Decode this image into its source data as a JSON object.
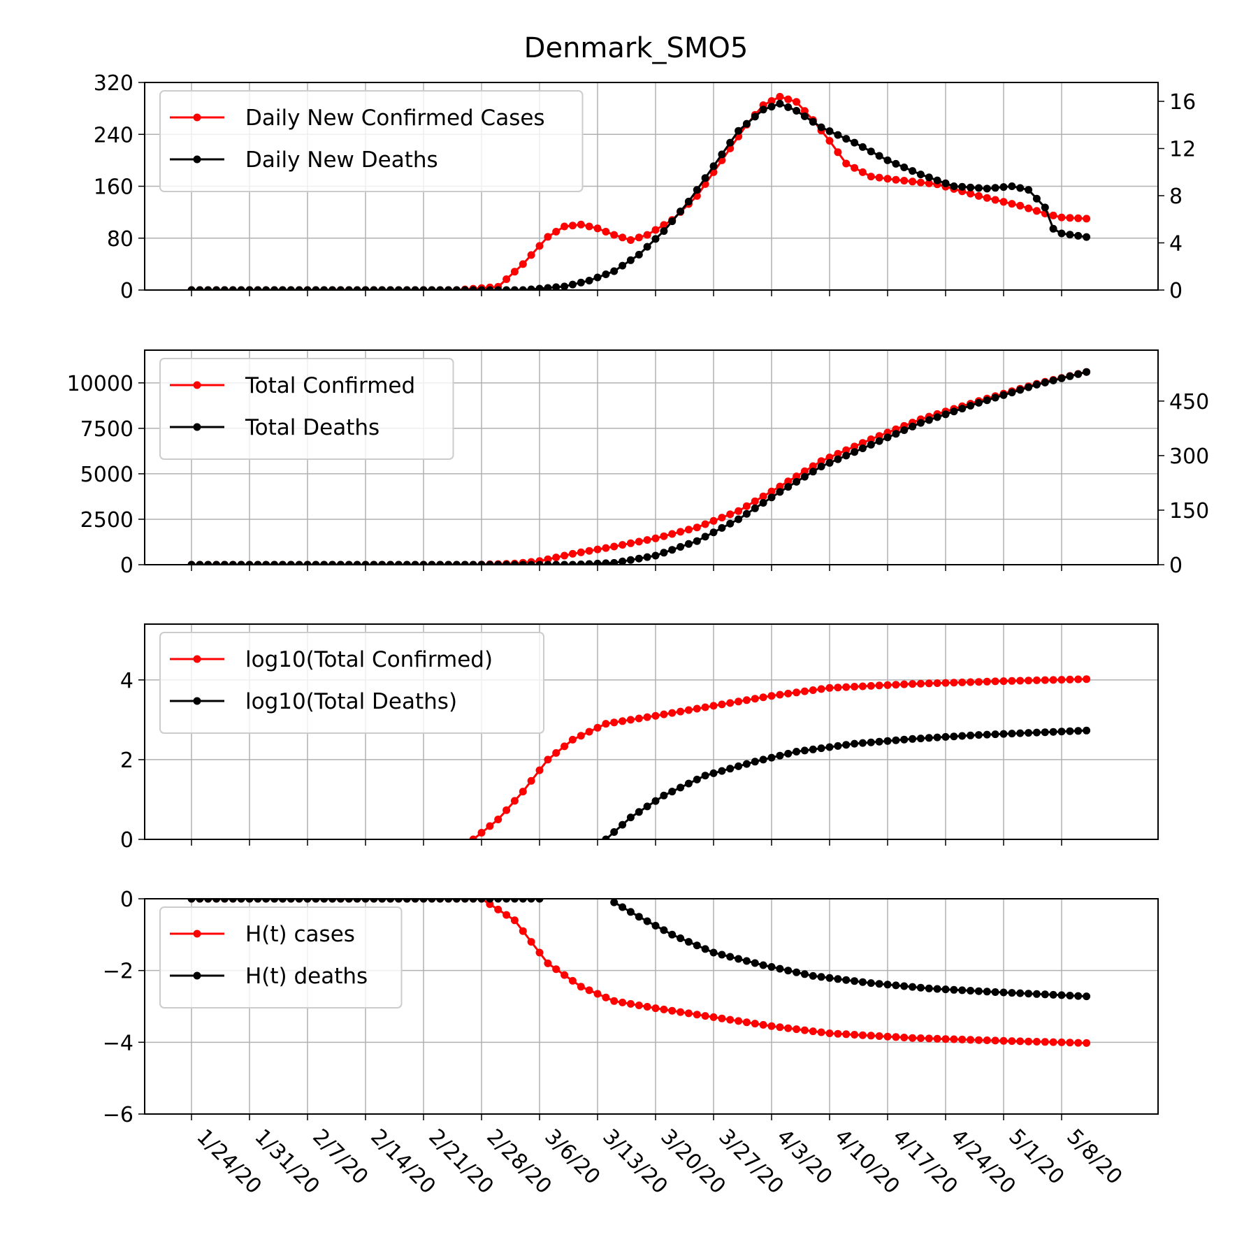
{
  "title": "Denmark_SMO5",
  "colors": {
    "cases": "#ff0000",
    "deaths": "#000000",
    "grid": "#b0b0b0"
  },
  "chart_data": [
    {
      "type": "line",
      "x_start": "1/24/20",
      "x_end": "5/11/20",
      "x_ticks": [
        "1/24/20",
        "1/31/20",
        "2/7/20",
        "2/14/20",
        "2/21/20",
        "2/28/20",
        "3/6/20",
        "3/13/20",
        "3/20/20",
        "3/27/20",
        "4/3/20",
        "4/10/20",
        "4/17/20",
        "4/24/20",
        "5/1/20",
        "5/8/20"
      ],
      "y_left": {
        "ylim": [
          0,
          320
        ],
        "ticks": [
          "0",
          "80",
          "160",
          "240",
          "320"
        ]
      },
      "y_right": {
        "ylim": [
          0,
          17.6
        ],
        "ticks": [
          "0",
          "4",
          "8",
          "12",
          "16"
        ]
      },
      "grid": true,
      "legend": "top-left",
      "series": [
        {
          "name": "Daily New Confirmed Cases",
          "axis": "left",
          "color": "#ff0000",
          "keypoints": [
            [
              "1/24/20",
              0
            ],
            [
              "2/25/20",
              0
            ],
            [
              "3/1/20",
              5
            ],
            [
              "3/4/20",
              40
            ],
            [
              "3/7/20",
              82
            ],
            [
              "3/9/20",
              98
            ],
            [
              "3/11/20",
              101
            ],
            [
              "3/13/20",
              95
            ],
            [
              "3/15/20",
              85
            ],
            [
              "3/17/20",
              77
            ],
            [
              "3/19/20",
              85
            ],
            [
              "3/22/20",
              108
            ],
            [
              "3/25/20",
              145
            ],
            [
              "3/28/20",
              200
            ],
            [
              "3/31/20",
              255
            ],
            [
              "4/2/20",
              285
            ],
            [
              "4/4/20",
              298
            ],
            [
              "4/6/20",
              290
            ],
            [
              "4/8/20",
              262
            ],
            [
              "4/10/20",
              230
            ],
            [
              "4/12/20",
              195
            ],
            [
              "4/15/20",
              175
            ],
            [
              "4/18/20",
              170
            ],
            [
              "4/23/20",
              163
            ],
            [
              "4/28/20",
              145
            ],
            [
              "5/3/20",
              130
            ],
            [
              "5/6/20",
              118
            ],
            [
              "5/8/20",
              112
            ],
            [
              "5/11/20",
              110
            ]
          ]
        },
        {
          "name": "Daily New Deaths",
          "axis": "right",
          "color": "#000000",
          "keypoints": [
            [
              "1/24/20",
              0
            ],
            [
              "3/4/20",
              0
            ],
            [
              "3/9/20",
              0.3
            ],
            [
              "3/12/20",
              0.8
            ],
            [
              "3/15/20",
              1.6
            ],
            [
              "3/18/20",
              3
            ],
            [
              "3/21/20",
              5
            ],
            [
              "3/24/20",
              7.5
            ],
            [
              "3/27/20",
              10.5
            ],
            [
              "3/30/20",
              13.5
            ],
            [
              "4/2/20",
              15.3
            ],
            [
              "4/4/20",
              15.8
            ],
            [
              "4/6/20",
              15.2
            ],
            [
              "4/9/20",
              13.8
            ],
            [
              "4/13/20",
              12.5
            ],
            [
              "4/17/20",
              11
            ],
            [
              "4/21/20",
              9.8
            ],
            [
              "4/25/20",
              8.8
            ],
            [
              "4/29/20",
              8.6
            ],
            [
              "5/2/20",
              8.8
            ],
            [
              "5/4/20",
              8.5
            ],
            [
              "5/6/20",
              7
            ],
            [
              "5/7/20",
              5.2
            ],
            [
              "5/8/20",
              4.8
            ],
            [
              "5/11/20",
              4.5
            ]
          ]
        }
      ]
    },
    {
      "type": "line",
      "x_start": "1/24/20",
      "x_end": "5/11/20",
      "y_left": {
        "ylim": [
          0,
          11800
        ],
        "ticks": [
          "0",
          "2500",
          "5000",
          "7500",
          "10000"
        ]
      },
      "y_right": {
        "ylim": [
          0,
          590
        ],
        "ticks": [
          "0",
          "150",
          "300",
          "450"
        ]
      },
      "grid": true,
      "legend": "top-left",
      "series": [
        {
          "name": "Total Confirmed",
          "axis": "left",
          "color": "#ff0000",
          "keypoints": [
            [
              "1/24/20",
              0
            ],
            [
              "2/27/20",
              0
            ],
            [
              "3/3/20",
              60
            ],
            [
              "3/6/20",
              200
            ],
            [
              "3/10/20",
              600
            ],
            [
              "3/15/20",
              1000
            ],
            [
              "3/20/20",
              1450
            ],
            [
              "3/25/20",
              2050
            ],
            [
              "3/30/20",
              2950
            ],
            [
              "4/4/20",
              4300
            ],
            [
              "4/9/20",
              5700
            ],
            [
              "4/15/20",
              6900
            ],
            [
              "4/21/20",
              8000
            ],
            [
              "4/28/20",
              9000
            ],
            [
              "5/5/20",
              9950
            ],
            [
              "5/11/20",
              10600
            ]
          ]
        },
        {
          "name": "Total Deaths",
          "axis": "right",
          "color": "#000000",
          "keypoints": [
            [
              "1/24/20",
              0
            ],
            [
              "3/10/20",
              0
            ],
            [
              "3/15/20",
              5
            ],
            [
              "3/20/20",
              25
            ],
            [
              "3/25/20",
              65
            ],
            [
              "3/30/20",
              125
            ],
            [
              "4/4/20",
              200
            ],
            [
              "4/9/20",
              270
            ],
            [
              "4/15/20",
              330
            ],
            [
              "4/21/20",
              390
            ],
            [
              "4/28/20",
              445
            ],
            [
              "5/5/20",
              495
            ],
            [
              "5/11/20",
              530
            ]
          ]
        }
      ]
    },
    {
      "type": "line",
      "x_start": "1/24/20",
      "x_end": "5/11/20",
      "y_left": {
        "ylim": [
          0,
          5.4
        ],
        "ticks": [
          "0",
          "2",
          "4"
        ]
      },
      "grid": true,
      "legend": "top-left",
      "series": [
        {
          "name": "log10(Total Confirmed)",
          "axis": "left",
          "color": "#ff0000",
          "keypoints": [
            [
              "2/27/20",
              0
            ],
            [
              "3/1/20",
              0.5
            ],
            [
              "3/4/20",
              1.2
            ],
            [
              "3/7/20",
              2.0
            ],
            [
              "3/10/20",
              2.5
            ],
            [
              "3/14/20",
              2.9
            ],
            [
              "3/20/20",
              3.1
            ],
            [
              "3/27/20",
              3.35
            ],
            [
              "4/3/20",
              3.6
            ],
            [
              "4/10/20",
              3.8
            ],
            [
              "4/20/20",
              3.9
            ],
            [
              "5/1/20",
              3.97
            ],
            [
              "5/11/20",
              4.02
            ]
          ]
        },
        {
          "name": "log10(Total Deaths)",
          "axis": "left",
          "color": "#000000",
          "keypoints": [
            [
              "3/14/20",
              0
            ],
            [
              "3/17/20",
              0.55
            ],
            [
              "3/21/20",
              1.1
            ],
            [
              "3/26/20",
              1.6
            ],
            [
              "4/1/20",
              1.95
            ],
            [
              "4/6/20",
              2.2
            ],
            [
              "4/13/20",
              2.4
            ],
            [
              "4/20/20",
              2.52
            ],
            [
              "4/28/20",
              2.62
            ],
            [
              "5/5/20",
              2.68
            ],
            [
              "5/11/20",
              2.73
            ]
          ]
        }
      ]
    },
    {
      "type": "line",
      "x_start": "1/24/20",
      "x_end": "5/11/20",
      "y_left": {
        "ylim": [
          -6,
          0
        ],
        "ticks": [
          "0",
          "−2",
          "−4",
          "−6"
        ]
      },
      "grid": true,
      "legend": "top-left",
      "series": [
        {
          "name": "H(t) cases",
          "axis": "left",
          "color": "#ff0000",
          "keypoints": [
            [
              "1/24/20",
              0
            ],
            [
              "2/28/20",
              0
            ],
            [
              "3/3/20",
              -0.6
            ],
            [
              "3/7/20",
              -1.8
            ],
            [
              "3/11/20",
              -2.45
            ],
            [
              "3/15/20",
              -2.85
            ],
            [
              "3/20/20",
              -3.05
            ],
            [
              "3/27/20",
              -3.3
            ],
            [
              "4/3/20",
              -3.55
            ],
            [
              "4/10/20",
              -3.75
            ],
            [
              "4/20/20",
              -3.88
            ],
            [
              "5/1/20",
              -3.96
            ],
            [
              "5/11/20",
              -4.02
            ]
          ]
        },
        {
          "name": "H(t) deaths",
          "axis": "left",
          "color": "#000000",
          "keypoints": [
            [
              "1/24/20",
              0
            ],
            [
              "3/6/20",
              0
            ]
          ]
        },
        {
          "name": "H(t) deaths",
          "axis": "left",
          "color": "#000000",
          "keypoints": [
            [
              "3/15/20",
              -0.1
            ],
            [
              "3/18/20",
              -0.5
            ],
            [
              "3/22/20",
              -1.0
            ],
            [
              "3/27/20",
              -1.5
            ],
            [
              "4/2/20",
              -1.85
            ],
            [
              "4/8/20",
              -2.15
            ],
            [
              "4/15/20",
              -2.35
            ],
            [
              "4/22/20",
              -2.5
            ],
            [
              "4/30/20",
              -2.6
            ],
            [
              "5/11/20",
              -2.72
            ]
          ]
        }
      ]
    }
  ]
}
